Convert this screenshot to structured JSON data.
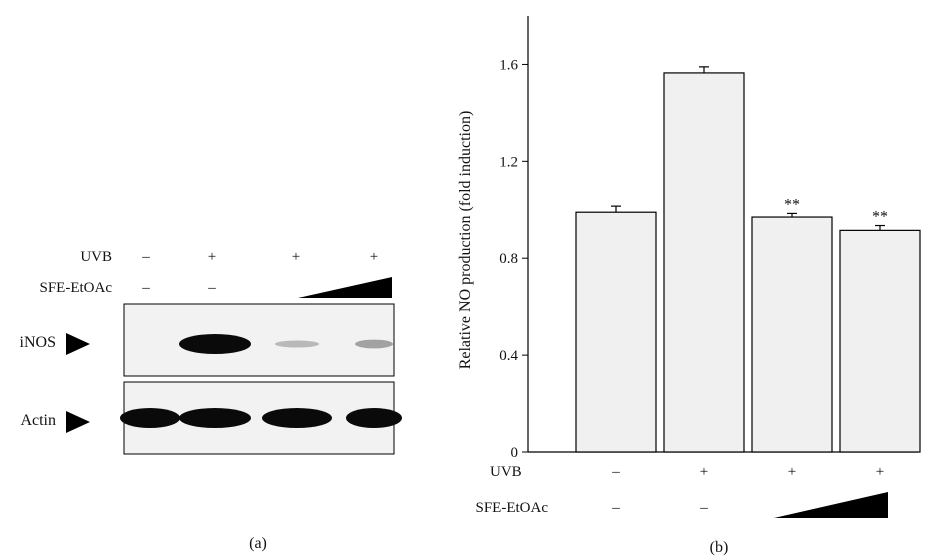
{
  "panel_a": {
    "label": "(a)",
    "row_labels": {
      "uvb": "UVB",
      "sfe": "SFE-EtOAc"
    },
    "uvb_signs": [
      "–",
      "+",
      "+",
      "+"
    ],
    "sfe_signs": [
      "–",
      "–"
    ],
    "blots": [
      {
        "label": "iNOS",
        "band_intensity": [
          0.0,
          1.0,
          0.08,
          0.2
        ]
      },
      {
        "label": "Actin",
        "band_intensity": [
          1.0,
          1.0,
          1.0,
          1.0
        ]
      }
    ]
  },
  "panel_b": {
    "label": "(b)",
    "row_labels": {
      "uvb": "UVB",
      "sfe": "SFE-EtOAc"
    },
    "uvb_signs": [
      "–",
      "+",
      "+",
      "+"
    ],
    "sfe_signs": [
      "–",
      "–"
    ],
    "significance": [
      "",
      "",
      "**",
      "**"
    ]
  },
  "chart_data": {
    "type": "bar",
    "title": "",
    "xlabel": "",
    "ylabel": "Relative NO production (fold induction)",
    "ylim": [
      0,
      1.8
    ],
    "yticks": [
      0,
      0.4,
      0.8,
      1.2,
      1.6
    ],
    "ytick_labels": [
      "0",
      "0.4",
      "0.8",
      "1.2",
      "1.6"
    ],
    "categories": [
      "UVB – / SFE-EtOAc –",
      "UVB + / SFE-EtOAc –",
      "UVB + / SFE-EtOAc low",
      "UVB + / SFE-EtOAc high"
    ],
    "values": [
      0.99,
      1.565,
      0.97,
      0.915
    ],
    "errors": [
      0.025,
      0.025,
      0.015,
      0.02
    ],
    "bar_color": "#f0f0f0",
    "edge_color": "#000000",
    "grid": false
  }
}
